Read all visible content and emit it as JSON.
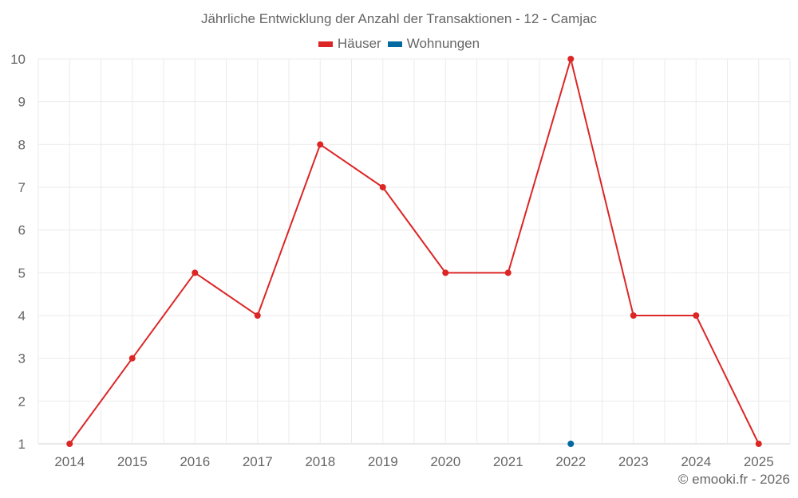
{
  "title": "Jährliche Entwicklung der Anzahl der Transaktionen - 12 - Camjac",
  "credit": "© emooki.fr - 2026",
  "legend": [
    {
      "label": "Häuser",
      "color": "#dc2626"
    },
    {
      "label": "Wohnungen",
      "color": "#0369a1"
    }
  ],
  "chart_data": {
    "type": "line",
    "title": "Jährliche Entwicklung der Anzahl der Transaktionen - 12 - Camjac",
    "xlabel": "",
    "ylabel": "",
    "categories": [
      "2014",
      "2015",
      "2016",
      "2017",
      "2018",
      "2019",
      "2020",
      "2021",
      "2022",
      "2023",
      "2024",
      "2025"
    ],
    "series": [
      {
        "name": "Häuser",
        "color": "#dc2626",
        "values": [
          1,
          3,
          5,
          4,
          8,
          7,
          5,
          5,
          10,
          4,
          4,
          1
        ]
      },
      {
        "name": "Wohnungen",
        "color": "#0369a1",
        "values": [
          null,
          null,
          null,
          null,
          null,
          null,
          null,
          null,
          1,
          null,
          null,
          null
        ]
      }
    ],
    "yticks": [
      1,
      2,
      3,
      4,
      5,
      6,
      7,
      8,
      9,
      10
    ],
    "ylim": [
      1,
      10
    ],
    "grid": true,
    "legend_position": "top"
  }
}
